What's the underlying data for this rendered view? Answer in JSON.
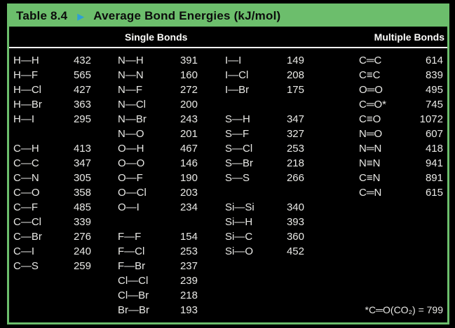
{
  "header": {
    "table_label": "Table 8.4",
    "arrow_icon": "▶",
    "title": "Average Bond Energies (kJ/mol)"
  },
  "sections": {
    "single_bonds_label": "Single Bonds",
    "multiple_bonds_label": "Multiple Bonds"
  },
  "table": {
    "rows": [
      [
        "H—H",
        "432",
        "N—H",
        "391",
        "I—I",
        "149",
        "C═C",
        "614"
      ],
      [
        "H—F",
        "565",
        "N—N",
        "160",
        "I—Cl",
        "208",
        "C≡C",
        "839"
      ],
      [
        "H—Cl",
        "427",
        "N—F",
        "272",
        "I—Br",
        "175",
        "O═O",
        "495"
      ],
      [
        "H—Br",
        "363",
        "N—Cl",
        "200",
        "",
        "",
        "C═O*",
        "745"
      ],
      [
        "H—I",
        "295",
        "N—Br",
        "243",
        "S—H",
        "347",
        "C≡O",
        "1072"
      ],
      [
        "",
        "",
        "N—O",
        "201",
        "S—F",
        "327",
        "N═O",
        "607"
      ],
      [
        "C—H",
        "413",
        "O—H",
        "467",
        "S—Cl",
        "253",
        "N═N",
        "418"
      ],
      [
        "C—C",
        "347",
        "O—O",
        "146",
        "S—Br",
        "218",
        "N≡N",
        "941"
      ],
      [
        "C—N",
        "305",
        "O—F",
        "190",
        "S—S",
        "266",
        "C≡N",
        "891"
      ],
      [
        "C—O",
        "358",
        "O—Cl",
        "203",
        "",
        "",
        "C═N",
        "615"
      ],
      [
        "C—F",
        "485",
        "O—I",
        "234",
        "Si—Si",
        "340",
        "",
        ""
      ],
      [
        "C—Cl",
        "339",
        "",
        "",
        "Si—H",
        "393",
        "",
        ""
      ],
      [
        "C—Br",
        "276",
        "F—F",
        "154",
        "Si—C",
        "360",
        "",
        ""
      ],
      [
        "C—I",
        "240",
        "F—Cl",
        "253",
        "Si—O",
        "452",
        "",
        ""
      ],
      [
        "C—S",
        "259",
        "F—Br",
        "237",
        "",
        "",
        "",
        ""
      ],
      [
        "",
        "",
        "Cl—Cl",
        "239",
        "",
        "",
        "",
        ""
      ],
      [
        "",
        "",
        "Cl—Br",
        "218",
        "",
        "",
        "",
        ""
      ],
      [
        "",
        "",
        "Br—Br",
        "193",
        "",
        "",
        "",
        ""
      ]
    ]
  },
  "footnote": "*C═O(CO₂) = 799",
  "colors": {
    "green": "#6cbe6c",
    "blue": "#2f9fd4",
    "text": "#e9e9e6",
    "bg": "#000000"
  }
}
